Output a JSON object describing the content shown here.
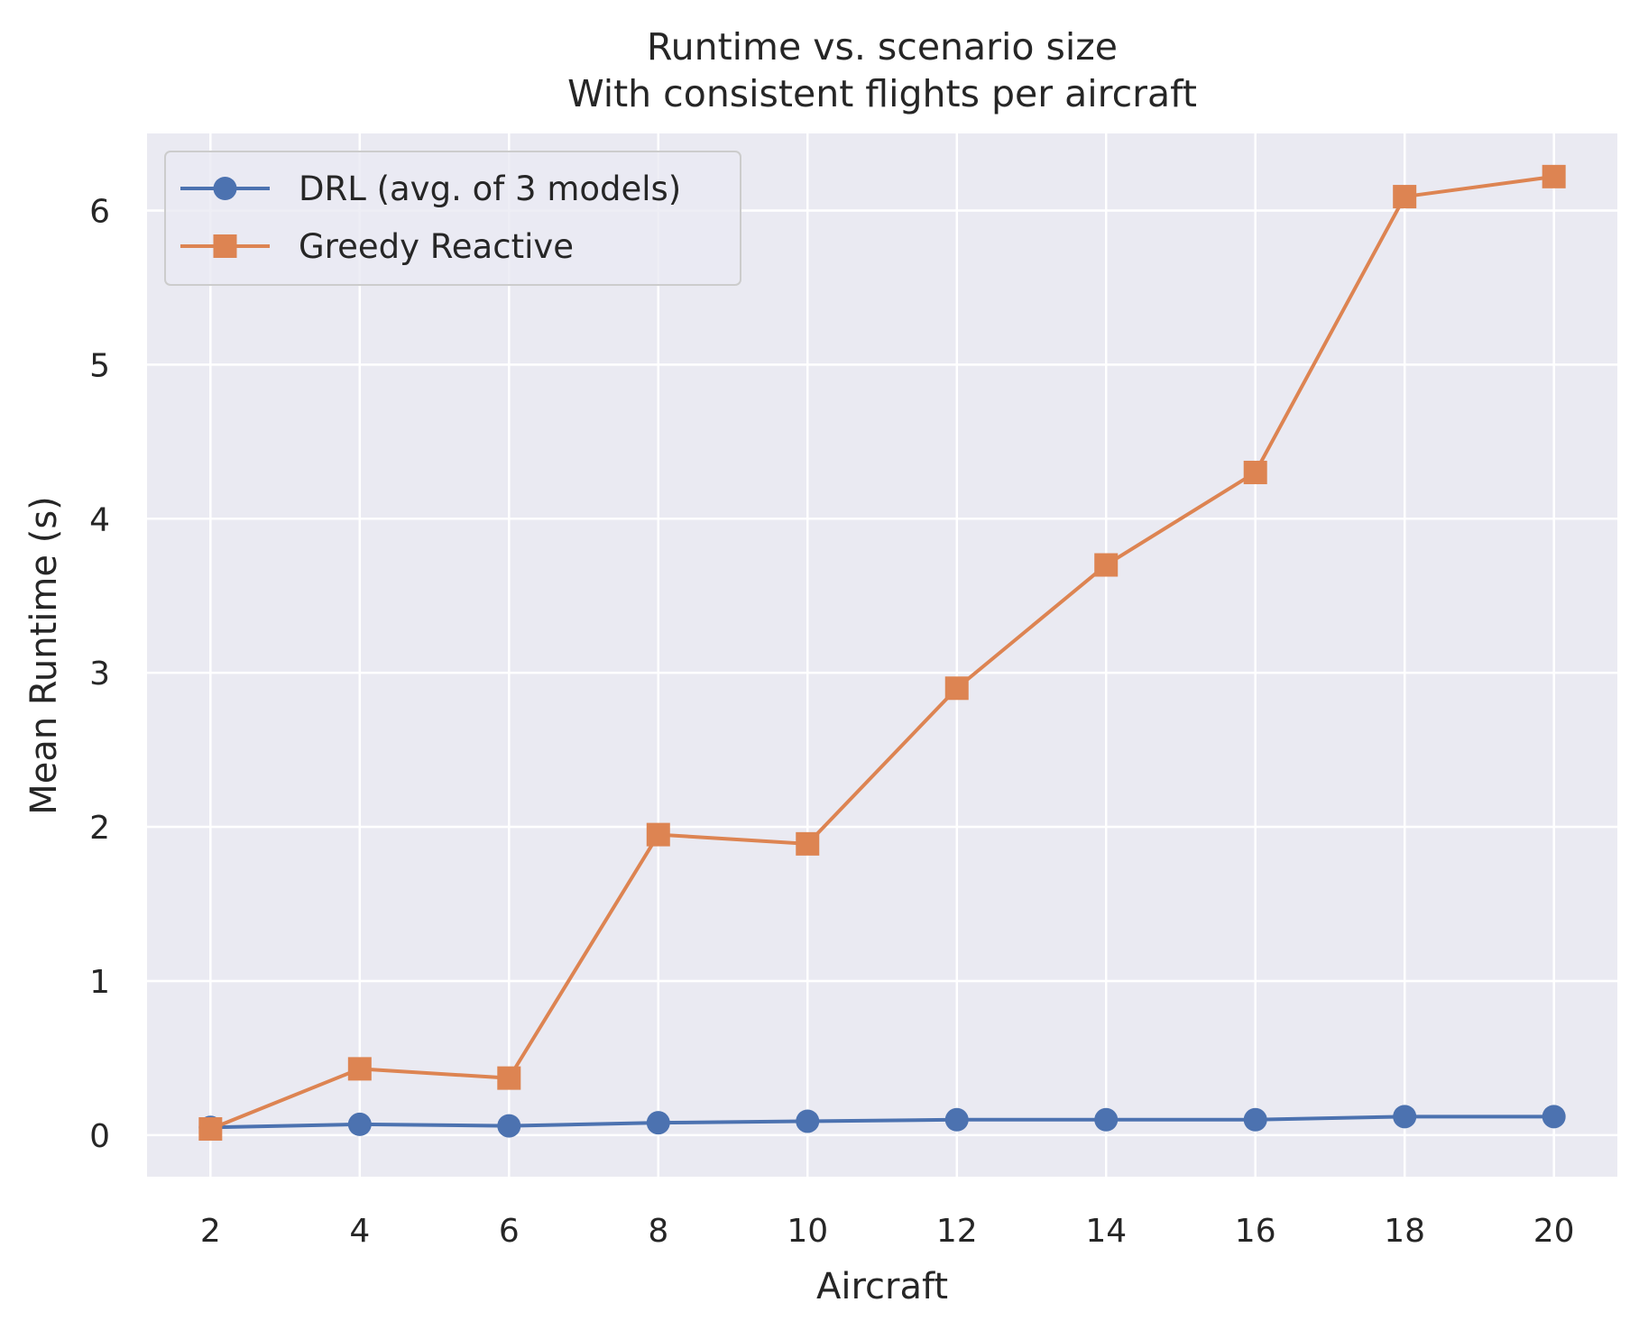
{
  "chart_data": {
    "type": "line",
    "title": "Runtime vs. scenario size",
    "subtitle": "With consistent flights per aircraft",
    "xlabel": "Aircraft",
    "ylabel": "Mean Runtime (s)",
    "x": [
      2,
      4,
      6,
      8,
      10,
      12,
      14,
      16,
      18,
      20
    ],
    "xticks": [
      "2",
      "4",
      "6",
      "8",
      "10",
      "12",
      "14",
      "16",
      "18",
      "20"
    ],
    "yticks": [
      "0",
      "1",
      "2",
      "3",
      "4",
      "5",
      "6"
    ],
    "xlim": [
      1.15,
      20.85
    ],
    "ylim": [
      -0.27,
      6.5
    ],
    "grid": true,
    "legend_position": "top-left",
    "series": [
      {
        "name": "DRL (avg. of 3 models)",
        "marker": "circle",
        "color": "#4c72b0",
        "values": [
          0.05,
          0.07,
          0.06,
          0.08,
          0.09,
          0.1,
          0.1,
          0.1,
          0.12,
          0.12
        ]
      },
      {
        "name": "Greedy Reactive",
        "marker": "square",
        "color": "#dd8452",
        "values": [
          0.04,
          0.43,
          0.37,
          1.95,
          1.89,
          2.9,
          3.7,
          4.3,
          6.09,
          6.22
        ]
      }
    ],
    "colors": {
      "plot_bg": "#eaeaf2",
      "grid": "#ffffff",
      "text": "#262626"
    }
  }
}
